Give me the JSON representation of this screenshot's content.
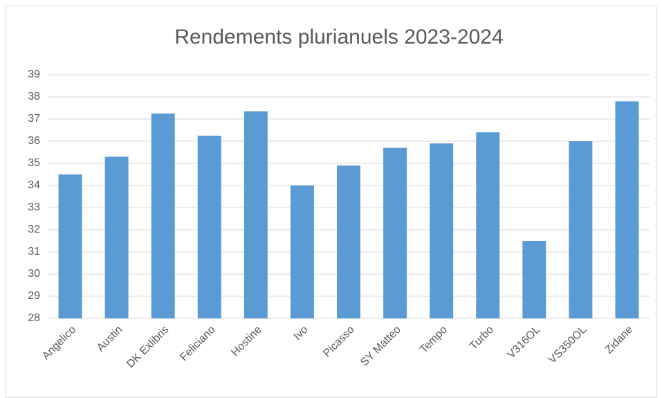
{
  "chart_data": {
    "type": "bar",
    "title": "Rendements plurianuels 2023-2024",
    "categories": [
      "Angelico",
      "Austin",
      "DK Exlibris",
      "Feliciano",
      "Hostine",
      "Ivo",
      "Picasso",
      "SY Matteo",
      "Tempo",
      "Turbo",
      "V316OL",
      "VS350OL",
      "Zidane"
    ],
    "values": [
      34.5,
      35.3,
      37.25,
      36.25,
      37.35,
      34.0,
      34.9,
      35.7,
      35.9,
      36.4,
      31.5,
      36.0,
      37.8
    ],
    "color": "#5b9bd5",
    "ylim": [
      28,
      39
    ],
    "yticks": [
      28,
      29,
      30,
      31,
      32,
      33,
      34,
      35,
      36,
      37,
      38,
      39
    ],
    "grid": true
  }
}
